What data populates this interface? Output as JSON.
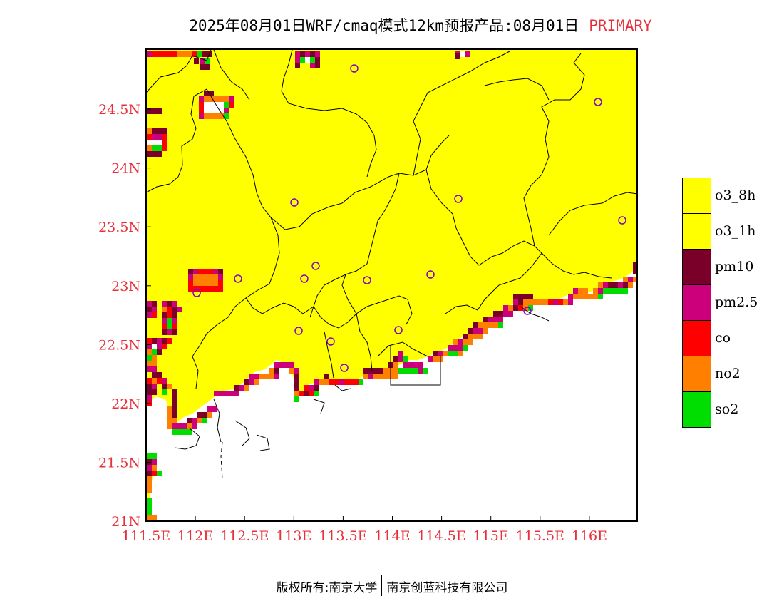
{
  "title": {
    "main": "2025年08月01日WRF/cmaq模式12km预报产品:08月01日",
    "tag": "PRIMARY"
  },
  "axes": {
    "x_ticks": [
      "111.5E",
      "112E",
      "112.5E",
      "113E",
      "113.5E",
      "114E",
      "114.5E",
      "115E",
      "115.5E",
      "116E"
    ],
    "y_ticks": [
      "24.5N",
      "24N",
      "23.5N",
      "23N",
      "22.5N",
      "22N",
      "21.5N",
      "21N"
    ]
  },
  "legend": [
    {
      "label": "o3_8h",
      "color": "#ffff00"
    },
    {
      "label": "o3_1h",
      "color": "#ffff00"
    },
    {
      "label": "pm10",
      "color": "#7a0029"
    },
    {
      "label": "pm2.5",
      "color": "#cc007a"
    },
    {
      "label": "co",
      "color": "#ff0000"
    },
    {
      "label": "no2",
      "color": "#ff7f00"
    },
    {
      "label": "so2",
      "color": "#00dd00"
    }
  ],
  "footer": {
    "left": "版权所有:南京大学",
    "right": "南京创蓝科技有限公司"
  },
  "colors": {
    "land": "#ffff00",
    "pm10": "#7a0029",
    "pm25": "#cc007a",
    "co": "#ff0000",
    "no2": "#ff7f00",
    "so2": "#00dd00",
    "axis_label": "#e8303a",
    "city_marker": "#8000cc"
  }
}
